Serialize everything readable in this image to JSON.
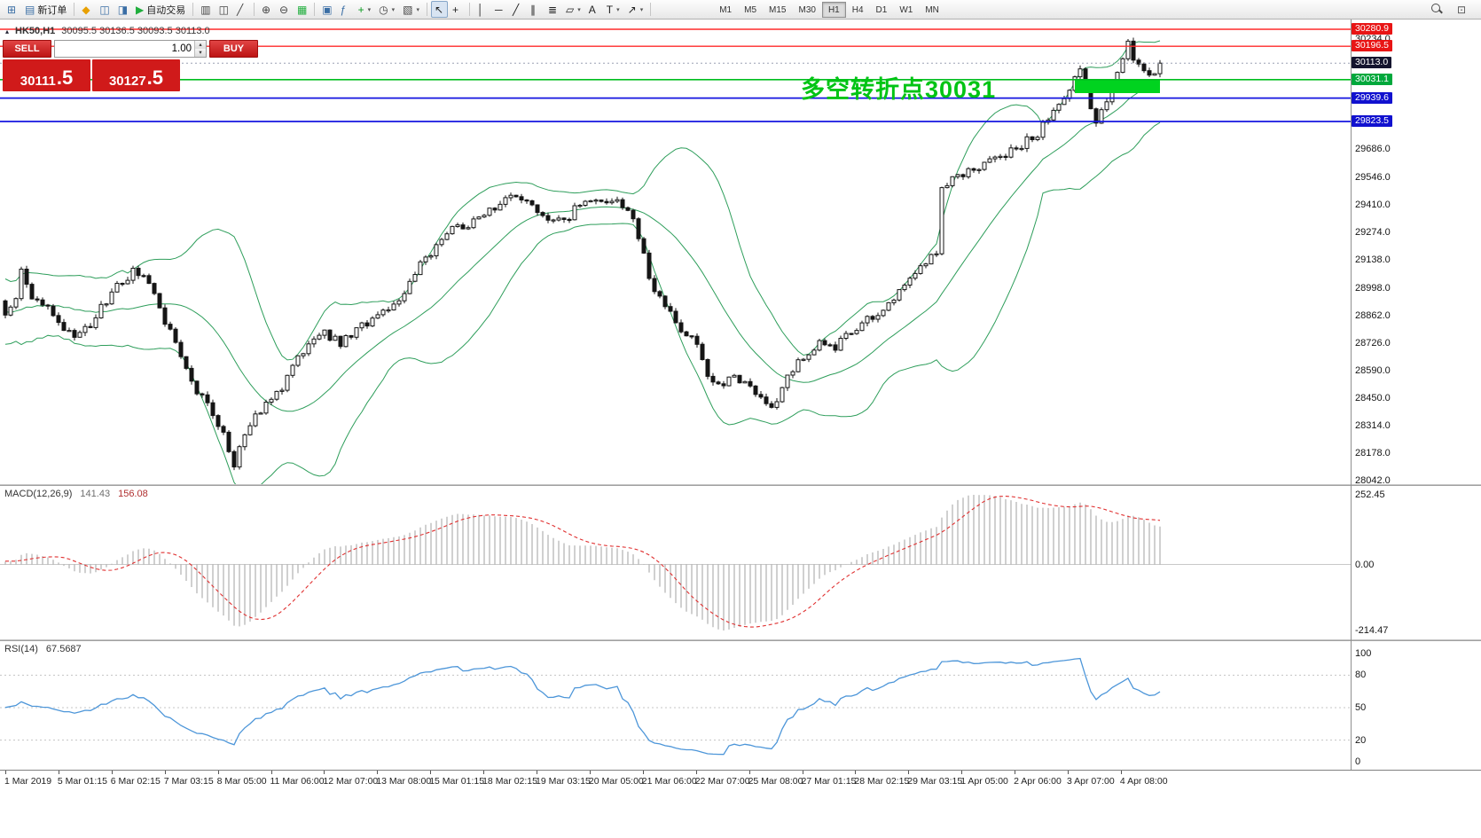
{
  "icons": {
    "dropdown": "▾",
    "spin_up": "▴",
    "spin_down": "▾",
    "panel_toggle": "▴"
  },
  "toolbar": {
    "items": [
      {
        "name": "new-chart",
        "glyph": "⊞",
        "color": "#3a6ea5"
      },
      {
        "name": "new-order",
        "glyph": "▤",
        "color": "#3a6ea5",
        "label": "新订单"
      },
      {
        "sep": true
      },
      {
        "name": "metaeditor",
        "glyph": "◆",
        "color": "#e8a000"
      },
      {
        "name": "market-watch",
        "glyph": "◫",
        "color": "#3a6ea5"
      },
      {
        "name": "terminal",
        "glyph": "◨",
        "color": "#3a6ea5"
      },
      {
        "name": "auto-trading",
        "glyph": "▶",
        "color": "#1fae3c",
        "label": "自动交易"
      },
      {
        "sep": true
      },
      {
        "name": "bar-chart-mode",
        "glyph": "▥",
        "color": "#444444"
      },
      {
        "name": "candle-chart-mode",
        "glyph": "◫",
        "color": "#444444"
      },
      {
        "name": "line-chart-mode",
        "glyph": "╱",
        "color": "#444444"
      },
      {
        "sep": true
      },
      {
        "name": "zoom-in",
        "glyph": "⊕",
        "color": "#444444"
      },
      {
        "name": "zoom-out",
        "glyph": "⊖",
        "color": "#444444"
      },
      {
        "name": "grid",
        "glyph": "▦",
        "color": "#1fae3c"
      },
      {
        "sep": true
      },
      {
        "name": "tile-windows",
        "glyph": "▣",
        "color": "#3a6ea5"
      },
      {
        "name": "indicators-list",
        "glyph": "ƒ",
        "color": "#3a6ea5"
      },
      {
        "name": "add-indicator",
        "glyph": "+",
        "color": "#0b9b20",
        "drop": true
      },
      {
        "name": "periods",
        "glyph": "◷",
        "color": "#444444",
        "drop": true
      },
      {
        "name": "chart-properties",
        "glyph": "▧",
        "color": "#444444",
        "drop": true
      },
      {
        "sep": true
      },
      {
        "name": "cursor",
        "glyph": "↖",
        "color": "#222222",
        "active": true
      },
      {
        "name": "crosshair",
        "glyph": "+",
        "color": "#222222"
      },
      {
        "sep": true
      },
      {
        "name": "vertical-line-tool",
        "glyph": "│",
        "color": "#222222"
      },
      {
        "name": "horizontal-line-tool",
        "glyph": "─",
        "color": "#222222"
      },
      {
        "name": "trendline-tool",
        "glyph": "╱",
        "color": "#222222"
      },
      {
        "name": "channel-tool",
        "glyph": "∥",
        "color": "#222222"
      },
      {
        "name": "fibonacci-tool",
        "glyph": "≣",
        "color": "#222222"
      },
      {
        "name": "shapes-tool",
        "glyph": "▱",
        "color": "#222222",
        "drop": true
      },
      {
        "name": "text-tool",
        "glyph": "A",
        "color": "#222222"
      },
      {
        "name": "label-tool",
        "glyph": "T",
        "color": "#222222",
        "drop": true
      },
      {
        "name": "arrow-tool",
        "glyph": "↗",
        "color": "#222222",
        "drop": true
      },
      {
        "sep": true
      }
    ],
    "timeframes": [
      {
        "label": "M1"
      },
      {
        "label": "M5"
      },
      {
        "label": "M15"
      },
      {
        "label": "M30"
      },
      {
        "label": "H1",
        "active": true
      },
      {
        "label": "H4"
      },
      {
        "label": "D1"
      },
      {
        "label": "W1"
      },
      {
        "label": "MN"
      }
    ],
    "right_items": [
      {
        "name": "search",
        "css": "mag"
      },
      {
        "name": "quick-search",
        "glyph": "⊡",
        "color": "#555555"
      }
    ]
  },
  "trade_panel": {
    "sell_label": "SELL",
    "buy_label": "BUY",
    "volume": "1.00",
    "sell_price_main": "30111",
    "sell_price_frac": ".5",
    "buy_price_main": "30127",
    "buy_price_frac": ".5"
  },
  "chart": {
    "title": "HK50,H1",
    "ohlc": "30095.5 30136.5 30093.5 30113.0",
    "scale_labels": [
      "30234.0",
      "29686.0",
      "29546.0",
      "29410.0",
      "29274.0",
      "29138.0",
      "28998.0",
      "28862.0",
      "28726.0",
      "28590.0",
      "28450.0",
      "28314.0",
      "28178.0",
      "28042.0"
    ],
    "levels": [
      {
        "name": "resistance-upper",
        "label": "30280.9",
        "value": 30280.9,
        "color": "#ff2a2a",
        "badge": "#e81515",
        "width": 1.4
      },
      {
        "name": "resistance-lower",
        "label": "30196.5",
        "value": 30196.5,
        "color": "#ff2a2a",
        "badge": "#e81515",
        "width": 1.4
      },
      {
        "name": "current-price",
        "label": "30113.0",
        "value": 30113.0,
        "color": "#9aa0b4",
        "badge": "#14142e",
        "width": 1,
        "dash": "2 3"
      },
      {
        "name": "pivot",
        "label": "30031.1",
        "value": 30031.1,
        "color": "#00bd1f",
        "badge": "#00a83c",
        "width": 1.6
      },
      {
        "name": "support-upper",
        "label": "29939.6",
        "value": 29939.6,
        "color": "#1414e0",
        "badge": "#1111cf",
        "width": 1.8
      },
      {
        "name": "support-lower",
        "label": "29823.5",
        "value": 29823.5,
        "color": "#1414e0",
        "badge": "#1111cf",
        "width": 1.8
      }
    ]
  },
  "macd": {
    "label": "MACD(12,26,9)",
    "value_macd": "141.43",
    "value_signal": "156.08",
    "scale": [
      "252.45",
      "0.00",
      "-214.47"
    ]
  },
  "rsi": {
    "label": "RSI(14)",
    "value": "67.5687",
    "scale": [
      "100",
      "80",
      "50",
      "20",
      "0"
    ]
  },
  "time_axis": [
    "1 Mar 2019",
    "5 Mar 01:15",
    "6 Mar 02:15",
    "7 Mar 03:15",
    "8 Mar 05:00",
    "11 Mar 06:00",
    "12 Mar 07:00",
    "13 Mar 08:00",
    "15 Mar 01:15",
    "18 Mar 02:15",
    "19 Mar 03:15",
    "20 Mar 05:00",
    "21 Mar 06:00",
    "22 Mar 07:00",
    "25 Mar 08:00",
    "27 Mar 01:15",
    "28 Mar 02:15",
    "29 Mar 03:15",
    "1 Apr 05:00",
    "2 Apr 06:00",
    "3 Apr 07:00",
    "4 Apr 08:00"
  ],
  "chart_data": {
    "type": "candlestick",
    "symbol": "HK50",
    "timeframe": "H1",
    "title": "HK50,H1 30095.5 30136.5 30093.5 30113.0",
    "x_range": [
      "1 Mar 2019",
      "4 Apr 2019"
    ],
    "y_range": [
      28042,
      30281
    ],
    "candle_count": 218,
    "last_close": 30113.0,
    "close_anchors": [
      [
        0,
        28880
      ],
      [
        2,
        28950
      ],
      [
        3,
        29090
      ],
      [
        5,
        28950
      ],
      [
        8,
        28900
      ],
      [
        10,
        28830
      ],
      [
        13,
        28750
      ],
      [
        16,
        28820
      ],
      [
        20,
        28980
      ],
      [
        24,
        29080
      ],
      [
        26,
        29060
      ],
      [
        29,
        28900
      ],
      [
        32,
        28720
      ],
      [
        35,
        28520
      ],
      [
        38,
        28410
      ],
      [
        41,
        28260
      ],
      [
        43,
        28120
      ],
      [
        44,
        28190
      ],
      [
        46,
        28310
      ],
      [
        49,
        28440
      ],
      [
        51,
        28470
      ],
      [
        54,
        28600
      ],
      [
        57,
        28720
      ],
      [
        60,
        28770
      ],
      [
        63,
        28730
      ],
      [
        66,
        28790
      ],
      [
        69,
        28850
      ],
      [
        72,
        28890
      ],
      [
        75,
        28960
      ],
      [
        78,
        29120
      ],
      [
        81,
        29200
      ],
      [
        84,
        29280
      ],
      [
        87,
        29310
      ],
      [
        90,
        29380
      ],
      [
        93,
        29420
      ],
      [
        96,
        29445
      ],
      [
        99,
        29400
      ],
      [
        102,
        29345
      ],
      [
        105,
        29325
      ],
      [
        108,
        29415
      ],
      [
        111,
        29450
      ],
      [
        114,
        29430
      ],
      [
        117,
        29400
      ],
      [
        119,
        29255
      ],
      [
        121,
        29050
      ],
      [
        124,
        28905
      ],
      [
        127,
        28800
      ],
      [
        130,
        28720
      ],
      [
        132,
        28560
      ],
      [
        134,
        28505
      ],
      [
        137,
        28555
      ],
      [
        140,
        28505
      ],
      [
        142,
        28445
      ],
      [
        144,
        28400
      ],
      [
        147,
        28560
      ],
      [
        150,
        28650
      ],
      [
        153,
        28720
      ],
      [
        156,
        28705
      ],
      [
        158,
        28760
      ],
      [
        161,
        28820
      ],
      [
        164,
        28880
      ],
      [
        167,
        28960
      ],
      [
        170,
        29060
      ],
      [
        173,
        29130
      ],
      [
        175,
        29180
      ],
      [
        176,
        29480
      ],
      [
        178,
        29545
      ],
      [
        181,
        29580
      ],
      [
        184,
        29620
      ],
      [
        187,
        29650
      ],
      [
        190,
        29685
      ],
      [
        192,
        29725
      ],
      [
        194,
        29765
      ],
      [
        197,
        29865
      ],
      [
        200,
        29990
      ],
      [
        202,
        30085
      ],
      [
        204,
        29900
      ],
      [
        205,
        29835
      ],
      [
        207,
        29935
      ],
      [
        209,
        30050
      ],
      [
        211,
        30205
      ],
      [
        213,
        30090
      ],
      [
        215,
        30045
      ],
      [
        217,
        30113
      ]
    ],
    "horizontal_levels": [
      30280.9,
      30196.5,
      30113.0,
      30031.1,
      29939.6,
      29823.5
    ],
    "highlight_zone": {
      "from_bar": 201,
      "to_bar": 217,
      "top_price": 30031,
      "bottom_price": 29964,
      "color": "#00d31f"
    },
    "annotation": {
      "text": "多空转折点30031",
      "color": "#00c414"
    },
    "indicators": {
      "bollinger": {
        "period": 20,
        "deviation": 2,
        "color": "#2e9e5b"
      },
      "macd": {
        "label": "MACD(12,26,9)",
        "current_macd": 141.43,
        "current_signal": 156.08,
        "axis": [
          252.45,
          0,
          -214.47
        ],
        "histogram_color": "#a0a0a0",
        "signal_color": "#e03030"
      },
      "rsi": {
        "label": "RSI(14)",
        "current": 67.5687,
        "levels": [
          80,
          50,
          20
        ],
        "color": "#4d96d9"
      }
    }
  }
}
